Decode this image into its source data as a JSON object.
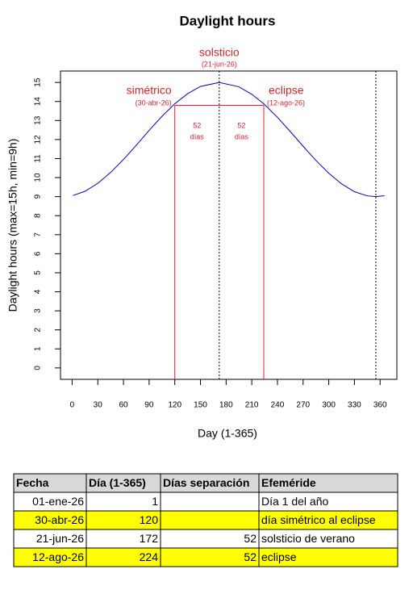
{
  "chart_data": {
    "type": "line",
    "title": "Daylight hours",
    "xlabel": "Day (1-365)",
    "ylabel": "Daylight hours (max=15h, min=9h)",
    "x": [
      1,
      15,
      30,
      45,
      60,
      75,
      90,
      105,
      120,
      135,
      150,
      172,
      195,
      210,
      224,
      240,
      255,
      270,
      285,
      300,
      315,
      330,
      345,
      355,
      365
    ],
    "series": [
      {
        "color": "#0000cc",
        "values": [
          9.06,
          9.28,
          9.7,
          10.27,
          10.95,
          11.7,
          12.48,
          13.22,
          13.88,
          14.41,
          14.79,
          15.0,
          14.77,
          14.38,
          13.88,
          13.17,
          12.42,
          11.65,
          10.9,
          10.23,
          9.67,
          9.26,
          9.04,
          9.0,
          9.05
        ]
      }
    ],
    "xlim": [
      -13.6,
      379.6
    ],
    "ylim": [
      -0.6,
      15.6
    ],
    "xticks": [
      0,
      30,
      60,
      90,
      120,
      150,
      180,
      210,
      240,
      270,
      300,
      330,
      360
    ],
    "yticks": [
      0,
      1,
      2,
      3,
      4,
      5,
      6,
      7,
      8,
      9,
      10,
      11,
      12,
      13,
      14,
      15
    ],
    "reference_lines": [
      {
        "x": 172,
        "style": "dotted",
        "color": "#000000"
      },
      {
        "x": 355,
        "style": "dotted",
        "color": "#000000"
      }
    ],
    "bracket": {
      "x": [
        120,
        224
      ],
      "y": 13.8,
      "color": "#e0202a"
    },
    "annotations": {
      "solstice": {
        "text": "solsticio",
        "date": "(21-jun-26)"
      },
      "symmetric": {
        "text": "simétrico",
        "date": "(30-abr-26)"
      },
      "eclipse": {
        "text": "eclipse",
        "date": "(12-ago-26)"
      },
      "gaps": [
        {
          "days": "52",
          "unit": "días"
        },
        {
          "days": "52",
          "unit": "días"
        }
      ]
    }
  },
  "table": {
    "header": [
      "Fecha",
      "Día (1-365)",
      "Días separación",
      "Efeméride"
    ],
    "rows": [
      [
        "01-ene-26",
        "1",
        null,
        "Día 1 del año"
      ],
      [
        "30-abr-26",
        "120",
        null,
        "día simétrico al eclipse"
      ],
      [
        "21-jun-26",
        "172",
        "52",
        "solsticio de verano"
      ],
      [
        "12-ago-26",
        "224",
        "52",
        "eclipse"
      ]
    ],
    "highlight_rows": [
      1,
      3
    ],
    "highlight_color": "#ffff00"
  }
}
